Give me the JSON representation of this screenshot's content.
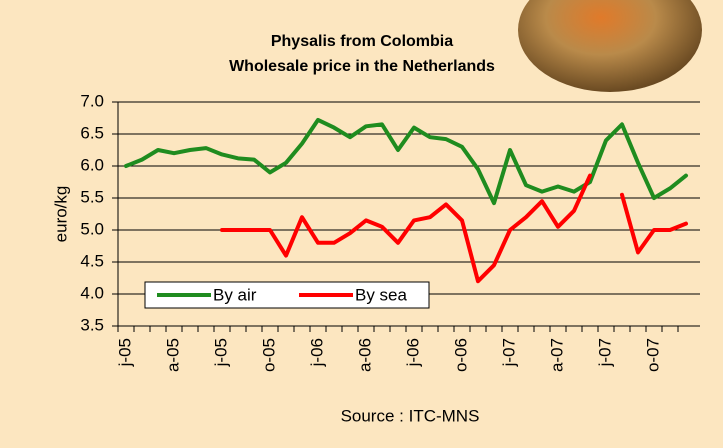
{
  "chart_data": {
    "type": "line",
    "title": "Physalis from Colombia",
    "subtitle": "Wholesale price in the Netherlands",
    "y_label": "euro/kg",
    "source": "Source : ITC-MNS",
    "categories": [
      "j-05",
      null,
      null,
      "a-05",
      null,
      null,
      "j-05",
      null,
      null,
      "o-05",
      null,
      null,
      "j-06",
      null,
      null,
      "a-06",
      null,
      null,
      "j-06",
      null,
      null,
      "o-06",
      null,
      null,
      "j-07",
      null,
      null,
      "a-07",
      null,
      null,
      "j-07",
      null,
      null,
      "o-07",
      null,
      null
    ],
    "series": [
      {
        "name": "By air",
        "color": "#1f8c1f",
        "values": [
          6.0,
          6.1,
          6.25,
          6.2,
          6.25,
          6.28,
          6.18,
          6.12,
          6.1,
          5.9,
          6.05,
          6.35,
          6.72,
          6.6,
          6.45,
          6.62,
          6.65,
          6.25,
          6.6,
          6.45,
          6.42,
          6.3,
          5.95,
          5.42,
          6.25,
          5.7,
          5.6,
          5.68,
          5.6,
          5.75,
          6.4,
          6.65,
          6.05,
          5.5,
          5.65,
          5.85
        ]
      },
      {
        "name": "By sea",
        "color": "#ff0000",
        "values": [
          null,
          null,
          null,
          null,
          null,
          null,
          5.0,
          5.0,
          5.0,
          5.0,
          4.6,
          5.2,
          4.8,
          4.8,
          4.95,
          5.15,
          5.05,
          4.8,
          5.15,
          5.2,
          5.4,
          5.15,
          4.2,
          4.45,
          5.0,
          5.2,
          5.45,
          5.05,
          5.3,
          5.85,
          null,
          5.55,
          4.65,
          5.0,
          5.0,
          5.1
        ]
      }
    ],
    "ylim": [
      3.5,
      7.0
    ],
    "yticks": [
      {
        "value": 3.5,
        "label": "3.5"
      },
      {
        "value": 4,
        "label": "4.0"
      },
      {
        "value": 4.5,
        "label": "4.5"
      },
      {
        "value": 5,
        "label": "5.0"
      },
      {
        "value": 5.5,
        "label": "5.5"
      },
      {
        "value": 6,
        "label": "6.0"
      },
      {
        "value": 6.5,
        "label": "6.5"
      },
      {
        "value": 7,
        "label": "7.0"
      }
    ],
    "grid": true,
    "legend": "lower left"
  }
}
